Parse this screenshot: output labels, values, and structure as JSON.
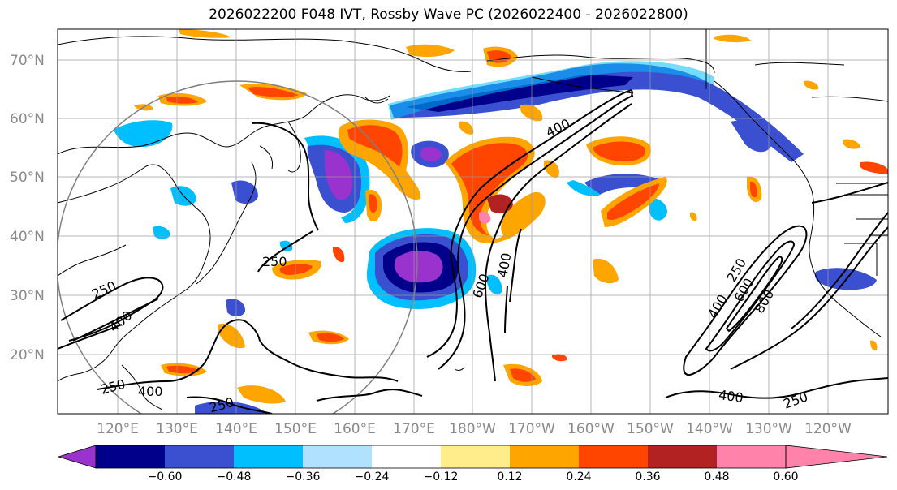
{
  "title": "2026022200 F048 IVT, Rossby Wave PC (2026022400 - 2026022800)",
  "map": {
    "lat_labels": [
      "70°N",
      "60°N",
      "50°N",
      "40°N",
      "30°N",
      "20°N"
    ],
    "lon_labels": [
      "120°E",
      "130°E",
      "140°E",
      "150°E",
      "160°E",
      "170°E",
      "180°W",
      "170°W",
      "160°W",
      "150°W",
      "140°W",
      "130°W",
      "120°W"
    ],
    "contour_labels": [
      "250",
      "400",
      "250",
      "250",
      "400",
      "250",
      "400",
      "400",
      "600",
      "250",
      "400",
      "600",
      "800",
      "400",
      "250"
    ]
  },
  "colorbar": {
    "tick_labels": [
      "−0.60",
      "−0.48",
      "−0.36",
      "−0.24",
      "−0.12",
      "0.12",
      "0.24",
      "0.36",
      "0.48",
      "0.60"
    ],
    "colors": [
      "#9a32cd",
      "#00008b",
      "#3a50d0",
      "#00bfff",
      "#b0e2ff",
      "#ffffff",
      "#ffec8b",
      "#ffa500",
      "#ff4500",
      "#b22222",
      "#ff82ab"
    ]
  }
}
